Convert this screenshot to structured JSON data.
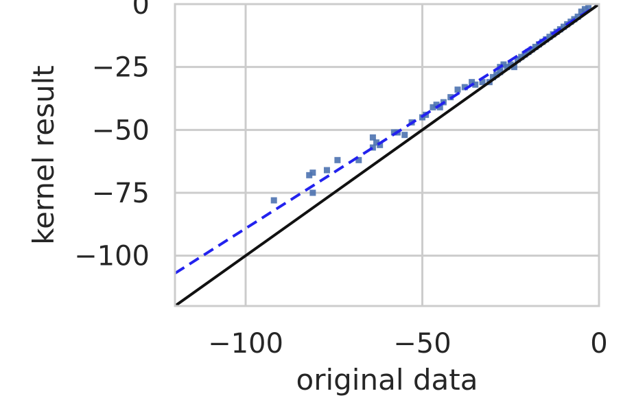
{
  "chart_data": {
    "type": "scatter",
    "title": "",
    "xlabel": "original data",
    "ylabel": "kernel result",
    "xlim": [
      -120,
      0
    ],
    "ylim": [
      -120,
      0
    ],
    "grid": true,
    "xticks": [
      -100,
      -50,
      0
    ],
    "xtick_labels": [
      "−100",
      "−50",
      "0"
    ],
    "yticks": [
      0,
      -25,
      -50,
      -75,
      -100
    ],
    "ytick_labels": [
      "0",
      "−25",
      "−50",
      "−75",
      "−100"
    ],
    "series": [
      {
        "kind": "scatter",
        "marker": "square",
        "color": "#4c72b0",
        "points": [
          [
            -92,
            -78
          ],
          [
            -82,
            -68
          ],
          [
            -81,
            -67
          ],
          [
            -81,
            -75
          ],
          [
            -77,
            -66
          ],
          [
            -74,
            -62
          ],
          [
            -68,
            -62
          ],
          [
            -64,
            -57
          ],
          [
            -64,
            -53
          ],
          [
            -63,
            -55
          ],
          [
            -62,
            -56
          ],
          [
            -58,
            -51
          ],
          [
            -57,
            -51
          ],
          [
            -55,
            -52
          ],
          [
            -53,
            -47
          ],
          [
            -50,
            -45
          ],
          [
            -49,
            -44
          ],
          [
            -47,
            -41
          ],
          [
            -46,
            -40
          ],
          [
            -45,
            -41
          ],
          [
            -44,
            -39
          ],
          [
            -42,
            -37
          ],
          [
            -40,
            -34
          ],
          [
            -38,
            -33
          ],
          [
            -36,
            -31
          ],
          [
            -35,
            -32
          ],
          [
            -33,
            -31
          ],
          [
            -31,
            -31
          ],
          [
            -30,
            -29
          ],
          [
            -29,
            -28
          ],
          [
            -28,
            -27
          ],
          [
            -28,
            -25
          ],
          [
            -27,
            -24
          ],
          [
            -26,
            -25
          ],
          [
            -25,
            -24
          ],
          [
            -24,
            -25
          ],
          [
            -23,
            -22
          ],
          [
            -22,
            -21
          ],
          [
            -21,
            -20
          ],
          [
            -20,
            -19
          ],
          [
            -19,
            -18
          ],
          [
            -18,
            -17
          ],
          [
            -17,
            -16
          ],
          [
            -16,
            -15
          ],
          [
            -15,
            -14
          ],
          [
            -14,
            -13
          ],
          [
            -13,
            -12
          ],
          [
            -12,
            -11
          ],
          [
            -11,
            -10
          ],
          [
            -10,
            -9
          ],
          [
            -9,
            -8
          ],
          [
            -8,
            -7
          ],
          [
            -7,
            -6
          ],
          [
            -6,
            -5
          ],
          [
            -5,
            -3
          ],
          [
            -4,
            -2
          ],
          [
            -3,
            -1
          ]
        ]
      },
      {
        "kind": "line",
        "style": "dashed",
        "color": "#2222ee",
        "points": [
          [
            -120,
            -107
          ],
          [
            0,
            0
          ]
        ]
      },
      {
        "kind": "line",
        "style": "solid",
        "color": "#111111",
        "points": [
          [
            -120,
            -120
          ],
          [
            0,
            0
          ]
        ]
      }
    ]
  }
}
